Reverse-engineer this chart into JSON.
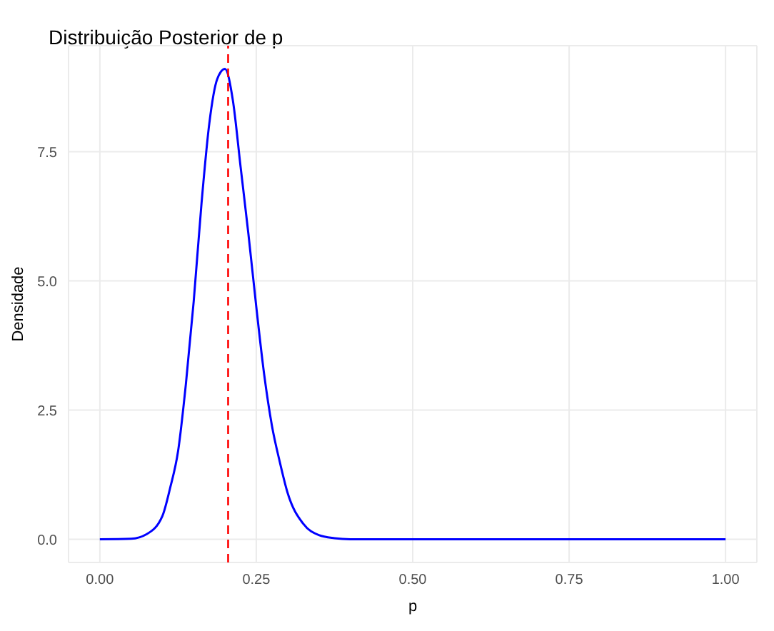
{
  "chart_data": {
    "type": "line",
    "title": "Distribuição Posterior de p",
    "xlabel": "p",
    "ylabel": "Densidade",
    "x": [
      0,
      0.05,
      0.075,
      0.1,
      0.1125,
      0.125,
      0.1375,
      0.15,
      0.1625,
      0.175,
      0.1875,
      0.2,
      0.2125,
      0.225,
      0.2375,
      0.25,
      0.2625,
      0.275,
      0.2875,
      0.3,
      0.325,
      0.35,
      0.375,
      0.4,
      0.45,
      0.5,
      0.75,
      1
    ],
    "series": [
      {
        "color": "#0000ff",
        "values": [
          0,
          0.01,
          0.1,
          0.45,
          1.0,
          1.7,
          3.0,
          4.6,
          6.5,
          8.05,
          8.9,
          9.1,
          8.5,
          7.2,
          5.9,
          4.5,
          3.2,
          2.2,
          1.5,
          0.9,
          0.3,
          0.08,
          0.02,
          0,
          0,
          0,
          0,
          0
        ]
      }
    ],
    "xlim": [
      -0.05,
      1.05
    ],
    "xticks": [
      {
        "value": 0,
        "label": "0.00"
      },
      {
        "value": 0.25,
        "label": "0.25"
      },
      {
        "value": 0.5,
        "label": "0.50"
      },
      {
        "value": 0.75,
        "label": "0.75"
      },
      {
        "value": 1,
        "label": "1.00"
      }
    ],
    "ylim": [
      -0.45,
      9.55
    ],
    "yticks": [
      {
        "value": 0,
        "label": "0.0"
      },
      {
        "value": 2.5,
        "label": "2.5"
      },
      {
        "value": 5,
        "label": "5.0"
      },
      {
        "value": 7.5,
        "label": "7.5"
      }
    ],
    "ref_lines": [
      {
        "axis": "x",
        "value": 0.205,
        "color": "#ff0000",
        "line_style": "dashed"
      }
    ],
    "grid": true,
    "marker": "none",
    "line_style": "solid",
    "legend": false
  }
}
